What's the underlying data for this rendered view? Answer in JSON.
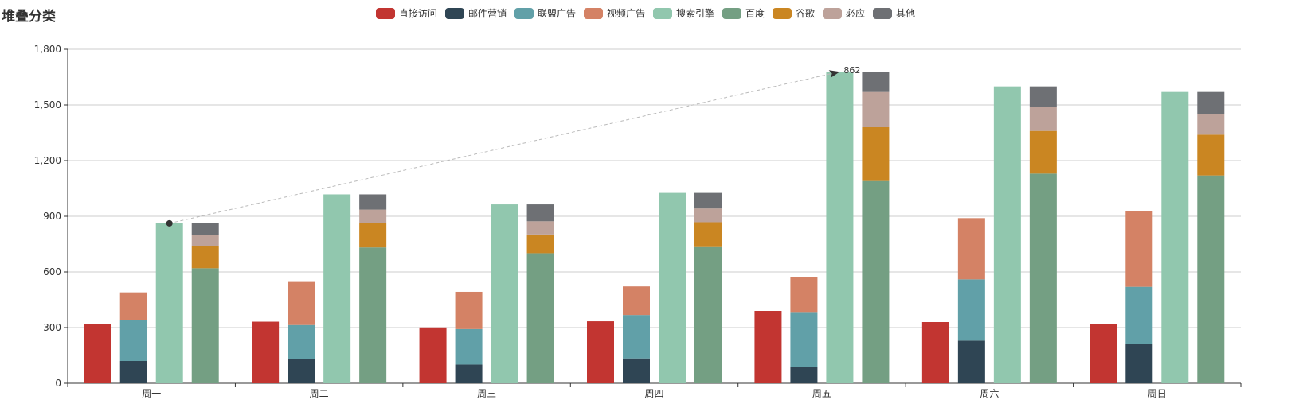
{
  "chart_data": {
    "type": "bar",
    "title": "堆叠分类",
    "categories": [
      "周一",
      "周二",
      "周三",
      "周四",
      "周五",
      "周六",
      "周日"
    ],
    "ylim": [
      0,
      1800
    ],
    "yticks": [
      0,
      300,
      600,
      900,
      1200,
      1500,
      1800
    ],
    "grid": true,
    "legend_position": "top-center",
    "series": [
      {
        "name": "直接访问",
        "stack": "a",
        "color": "#c23531",
        "values": [
          320,
          332,
          301,
          334,
          390,
          330,
          320
        ]
      },
      {
        "name": "邮件营销",
        "stack": "b",
        "color": "#2f4554",
        "values": [
          120,
          132,
          101,
          134,
          90,
          230,
          210
        ]
      },
      {
        "name": "联盟广告",
        "stack": "b",
        "color": "#61a0a8",
        "values": [
          220,
          182,
          191,
          234,
          290,
          330,
          310
        ]
      },
      {
        "name": "视频广告",
        "stack": "b",
        "color": "#d48265",
        "values": [
          150,
          232,
          201,
          154,
          190,
          330,
          410
        ]
      },
      {
        "name": "搜索引擎",
        "stack": "c",
        "color": "#91c7ae",
        "values": [
          862,
          1018,
          964,
          1026,
          1679,
          1600,
          1570
        ]
      },
      {
        "name": "百度",
        "stack": "d",
        "color": "#749f83",
        "values": [
          620,
          732,
          701,
          734,
          1090,
          1130,
          1120
        ]
      },
      {
        "name": "谷歌",
        "stack": "d",
        "color": "#ca8622",
        "values": [
          120,
          132,
          101,
          134,
          290,
          230,
          220
        ]
      },
      {
        "name": "必应",
        "stack": "d",
        "color": "#bda29a",
        "values": [
          60,
          72,
          71,
          74,
          190,
          130,
          110
        ]
      },
      {
        "name": "其他",
        "stack": "d",
        "color": "#6e7074",
        "values": [
          62,
          82,
          91,
          84,
          109,
          110,
          120
        ]
      }
    ],
    "markline": {
      "series": "搜索引擎",
      "from_category": "周一",
      "from_value": 862,
      "to_category": "周五",
      "to_value": 1679,
      "label": "862"
    }
  }
}
